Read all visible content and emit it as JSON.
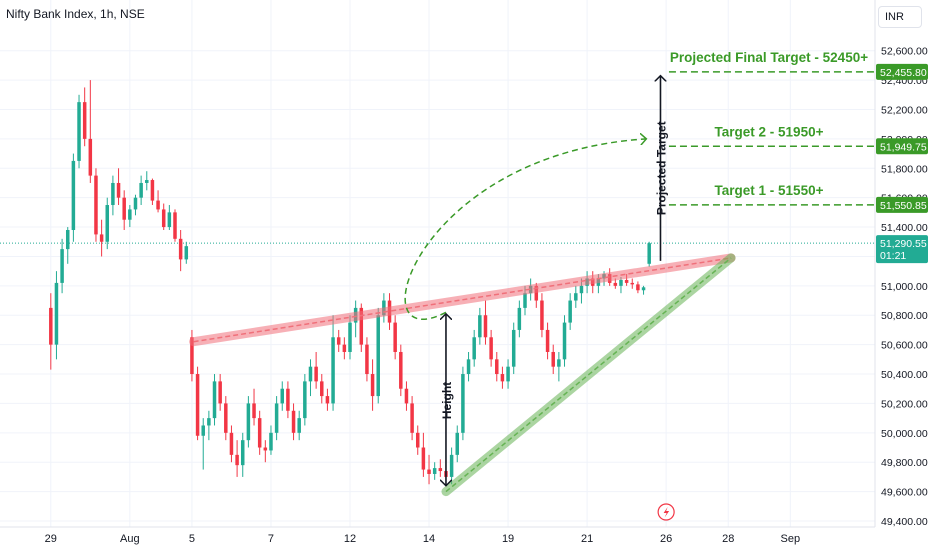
{
  "header": {
    "title": "Nifty Bank Index, 1h, NSE",
    "currency_button": "INR"
  },
  "colors": {
    "up": "#22ab94",
    "down": "#f23645",
    "resistance": "#f0707a",
    "support": "#66b354",
    "annotation_green": "#3a9a28",
    "price_tag": "#22ab94"
  },
  "chart_data": {
    "type": "candlestick",
    "title": "Nifty Bank Index, 1h, NSE",
    "ylim": [
      49400,
      52700
    ],
    "y_ticks": [
      49400,
      49600,
      49800,
      50000,
      50200,
      50400,
      50600,
      50800,
      51000,
      51200,
      51400,
      51600,
      51800,
      52000,
      52200,
      52400,
      52600
    ],
    "y_tick_labels": [
      "49,400.00",
      "49,600.00",
      "49,800.00",
      "50,000.00",
      "50,200.00",
      "50,400.00",
      "50,600.00",
      "50,800.00",
      "51,000.00",
      "51,200.00",
      "51,400.00",
      "51,600.00",
      "51,800.00",
      "52,000.00",
      "52,200.00",
      "52,400.00",
      "52,600.00"
    ],
    "x_tick_labels": [
      "29",
      "Aug",
      "5",
      "7",
      "12",
      "14",
      "19",
      "21",
      "26",
      "28",
      "Sep"
    ],
    "x_tick_index": [
      0,
      14,
      25,
      39,
      53,
      67,
      81,
      95,
      109,
      120,
      131
    ],
    "x_range": [
      -9,
      146
    ],
    "ohlc": [
      [
        50850,
        50950,
        50430,
        50600
      ],
      [
        50600,
        51100,
        50500,
        51020
      ],
      [
        51020,
        51320,
        50950,
        51250
      ],
      [
        51250,
        51400,
        51150,
        51380
      ],
      [
        51380,
        51900,
        51300,
        51850
      ],
      [
        51850,
        52300,
        51800,
        52250
      ],
      [
        52250,
        52350,
        51950,
        52000
      ],
      [
        52000,
        52400,
        51700,
        51750
      ],
      [
        51750,
        51800,
        51300,
        51350
      ],
      [
        51350,
        51450,
        51200,
        51300
      ],
      [
        51300,
        51600,
        51250,
        51550
      ],
      [
        51550,
        51750,
        51480,
        51700
      ],
      [
        51700,
        51800,
        51550,
        51600
      ],
      [
        51600,
        51650,
        51380,
        51450
      ],
      [
        51450,
        51550,
        51400,
        51520
      ],
      [
        51520,
        51620,
        51480,
        51600
      ],
      [
        51600,
        51750,
        51550,
        51700
      ],
      [
        51700,
        51780,
        51650,
        51720
      ],
      [
        51720,
        51730,
        51550,
        51580
      ],
      [
        51580,
        51650,
        51500,
        51520
      ],
      [
        51520,
        51560,
        51380,
        51400
      ],
      [
        51400,
        51550,
        51380,
        51500
      ],
      [
        51500,
        51520,
        51300,
        51320
      ],
      [
        51320,
        51380,
        51100,
        51180
      ],
      [
        51180,
        51300,
        51150,
        51270
      ],
      [
        50650,
        50700,
        50350,
        50400
      ],
      [
        50400,
        50450,
        49950,
        49980
      ],
      [
        49980,
        50100,
        49750,
        50050
      ],
      [
        50050,
        50150,
        49950,
        50100
      ],
      [
        50100,
        50400,
        50050,
        50350
      ],
      [
        50350,
        50400,
        50150,
        50200
      ],
      [
        50200,
        50250,
        49950,
        50000
      ],
      [
        50000,
        50050,
        49800,
        49850
      ],
      [
        49850,
        49950,
        49700,
        49780
      ],
      [
        49780,
        50000,
        49700,
        49950
      ],
      [
        49950,
        50250,
        49900,
        50200
      ],
      [
        50200,
        50300,
        50050,
        50100
      ],
      [
        50100,
        50150,
        49850,
        49900
      ],
      [
        49900,
        49950,
        49800,
        49880
      ],
      [
        49880,
        50050,
        49850,
        50000
      ],
      [
        50000,
        50250,
        49950,
        50200
      ],
      [
        50200,
        50350,
        50150,
        50300
      ],
      [
        50300,
        50350,
        50100,
        50150
      ],
      [
        50150,
        50200,
        49950,
        50000
      ],
      [
        50000,
        50150,
        49950,
        50100
      ],
      [
        50100,
        50400,
        50050,
        50350
      ],
      [
        50350,
        50500,
        50250,
        50450
      ],
      [
        50450,
        50550,
        50300,
        50350
      ],
      [
        50350,
        50400,
        50200,
        50250
      ],
      [
        50250,
        50300,
        50150,
        50200
      ],
      [
        50200,
        50800,
        50150,
        50650
      ],
      [
        50650,
        50700,
        50550,
        50600
      ],
      [
        50600,
        50650,
        50500,
        50550
      ],
      [
        50550,
        50800,
        50500,
        50750
      ],
      [
        50750,
        50900,
        50650,
        50850
      ],
      [
        50850,
        50880,
        50550,
        50600
      ],
      [
        50600,
        50650,
        50350,
        50400
      ],
      [
        50400,
        50500,
        50150,
        50250
      ],
      [
        50250,
        50850,
        50200,
        50800
      ],
      [
        50800,
        50950,
        50750,
        50900
      ],
      [
        50900,
        50950,
        50700,
        50750
      ],
      [
        50750,
        50800,
        50500,
        50550
      ],
      [
        50550,
        50600,
        50250,
        50300
      ],
      [
        50300,
        50350,
        50150,
        50200
      ],
      [
        50200,
        50250,
        49950,
        50000
      ],
      [
        50000,
        50050,
        49850,
        49900
      ],
      [
        49900,
        50000,
        49700,
        49750
      ],
      [
        49750,
        49850,
        49650,
        49720
      ],
      [
        49720,
        49800,
        49680,
        49760
      ],
      [
        49760,
        49820,
        49700,
        49740
      ],
      [
        49740,
        49780,
        49680,
        49700
      ],
      [
        49700,
        49900,
        49650,
        49850
      ],
      [
        49850,
        50050,
        49800,
        50000
      ],
      [
        50000,
        50450,
        49950,
        50400
      ],
      [
        50400,
        50550,
        50350,
        50500
      ],
      [
        50500,
        50700,
        50450,
        50650
      ],
      [
        50650,
        50850,
        50600,
        50800
      ],
      [
        50800,
        50900,
        50600,
        50650
      ],
      [
        50650,
        50700,
        50450,
        50500
      ],
      [
        50500,
        50550,
        50350,
        50400
      ],
      [
        50400,
        50450,
        50300,
        50350
      ],
      [
        50350,
        50500,
        50300,
        50450
      ],
      [
        50450,
        50750,
        50400,
        50700
      ],
      [
        50700,
        50900,
        50650,
        50850
      ],
      [
        50850,
        51000,
        50800,
        50950
      ],
      [
        50950,
        51050,
        50900,
        51000
      ],
      [
        51000,
        51020,
        50850,
        50900
      ],
      [
        50900,
        50950,
        50650,
        50700
      ],
      [
        50700,
        50750,
        50500,
        50550
      ],
      [
        50550,
        50600,
        50400,
        50450
      ],
      [
        50450,
        50550,
        50350,
        50500
      ],
      [
        50500,
        50800,
        50450,
        50750
      ],
      [
        50750,
        50950,
        50700,
        50900
      ],
      [
        50900,
        51000,
        50850,
        50950
      ],
      [
        50950,
        51050,
        50880,
        51000
      ],
      [
        51000,
        51100,
        50950,
        51050
      ],
      [
        51050,
        51100,
        50950,
        51000
      ],
      [
        51000,
        51080,
        50950,
        51050
      ],
      [
        51050,
        51100,
        51000,
        51080
      ],
      [
        51080,
        51120,
        51000,
        51020
      ],
      [
        51020,
        51050,
        50980,
        51000
      ],
      [
        51000,
        51060,
        50950,
        51040
      ],
      [
        51040,
        51080,
        51000,
        51020
      ],
      [
        51020,
        51050,
        50980,
        51010
      ],
      [
        51010,
        51030,
        50950,
        50970
      ],
      [
        50970,
        51000,
        50940,
        50990
      ],
      [
        51150,
        51300,
        51130,
        51290
      ]
    ]
  },
  "annotations": {
    "projected_final_target": "Projected Final Target - 52450+",
    "target_2": "Target 2 - 51950+",
    "target_1": "Target 1 - 51550+",
    "height_label": "Height",
    "projected_target_label": "Projected Target",
    "levels": {
      "final": 52455.8,
      "t2": 51949.75,
      "t1": 51550.85,
      "current": 51290.55
    }
  },
  "price_tags": {
    "final": "52,455.80",
    "t2": "51,949.75",
    "t1": "51,550.85",
    "current": "51,290.55",
    "countdown": "01:21"
  }
}
